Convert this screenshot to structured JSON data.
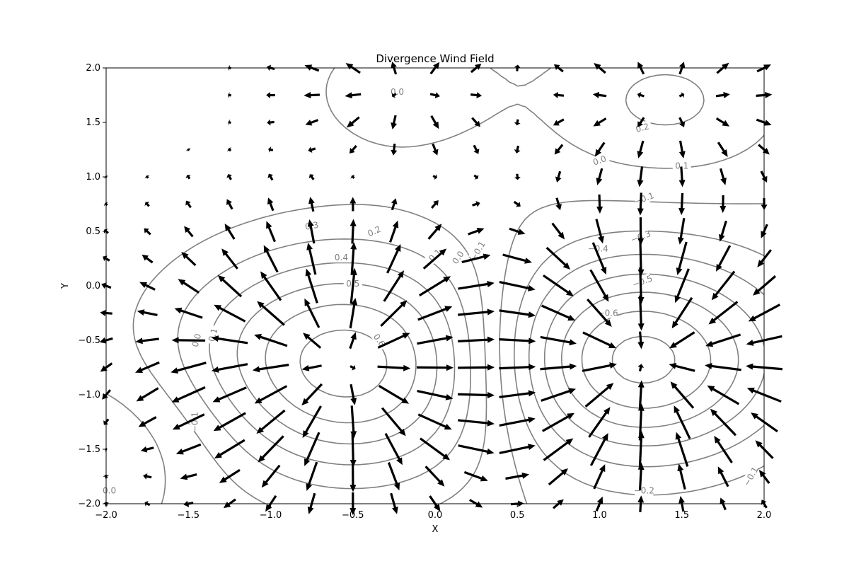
{
  "chart_data": {
    "type": "quiver-contour",
    "title": "Divergence Wind Field",
    "xlabel": "X",
    "ylabel": "Y",
    "xlim": [
      -2.0,
      2.0
    ],
    "ylim": [
      -2.0,
      2.0
    ],
    "grid": false,
    "legend": "none",
    "x_ticks": [
      -2.0,
      -1.5,
      -1.0,
      -0.5,
      0.0,
      0.5,
      1.0,
      1.5,
      2.0
    ],
    "y_ticks": [
      -2.0,
      -1.5,
      -1.0,
      -0.5,
      0.0,
      0.5,
      1.0,
      1.5,
      2.0
    ],
    "x_tick_labels": [
      "−2.0",
      "−1.5",
      "−1.0",
      "−0.5",
      "0.0",
      "0.5",
      "1.0",
      "1.5",
      "2.0"
    ],
    "y_tick_labels": [
      "−2.0",
      "−1.5",
      "−1.0",
      "−0.5",
      "0.0",
      "0.5",
      "1.0",
      "1.5",
      "2.0"
    ],
    "contour_levels": [
      -0.6,
      -0.5,
      -0.4,
      -0.3,
      -0.2,
      -0.1,
      0.0,
      0.1,
      0.2,
      0.3,
      0.4,
      0.5,
      0.6
    ],
    "contour_labels": [
      {
        "text": "0.6",
        "x": -0.34,
        "y": -0.5,
        "rot": 55
      },
      {
        "text": "0.5",
        "x": -0.5,
        "y": 0.02,
        "rot": 0
      },
      {
        "text": "0.4",
        "x": -0.57,
        "y": 0.26,
        "rot": 0
      },
      {
        "text": "0.3",
        "x": -0.75,
        "y": 0.55,
        "rot": -10
      },
      {
        "text": "0.2",
        "x": -0.37,
        "y": 0.5,
        "rot": -25
      },
      {
        "text": "0.1",
        "x": 0.0,
        "y": 0.28,
        "rot": -45
      },
      {
        "text": "0.0",
        "x": 0.14,
        "y": 0.26,
        "rot": -55
      },
      {
        "text": "−0.1",
        "x": 0.26,
        "y": 0.32,
        "rot": -60
      },
      {
        "text": "0.0",
        "x": -1.45,
        "y": -0.5,
        "rot": -75
      },
      {
        "text": "0.1",
        "x": -1.35,
        "y": -0.45,
        "rot": -75
      },
      {
        "text": "−0.1",
        "x": -1.46,
        "y": -1.25,
        "rot": -90
      },
      {
        "text": "0.0",
        "x": -1.98,
        "y": -1.88,
        "rot": 0
      },
      {
        "text": "0.0",
        "x": -0.23,
        "y": 1.78,
        "rot": 0
      },
      {
        "text": "0.2",
        "x": 1.26,
        "y": 1.45,
        "rot": -15
      },
      {
        "text": "0.1",
        "x": 1.5,
        "y": 1.1,
        "rot": 0
      },
      {
        "text": "0.0",
        "x": 1.0,
        "y": 1.15,
        "rot": -20
      },
      {
        "text": "−0.1",
        "x": 1.27,
        "y": 0.8,
        "rot": -20
      },
      {
        "text": "−0.3",
        "x": 1.25,
        "y": 0.45,
        "rot": -20
      },
      {
        "text": "−0.4",
        "x": 0.99,
        "y": 0.34,
        "rot": 0
      },
      {
        "text": "−0.5",
        "x": 1.26,
        "y": 0.04,
        "rot": -20
      },
      {
        "text": "−0.6",
        "x": 1.05,
        "y": -0.25,
        "rot": 0
      },
      {
        "text": "−0.2",
        "x": 1.27,
        "y": -1.88,
        "rot": 0
      },
      {
        "text": "−0.1",
        "x": 1.92,
        "y": -1.75,
        "rot": -60
      }
    ]
  }
}
